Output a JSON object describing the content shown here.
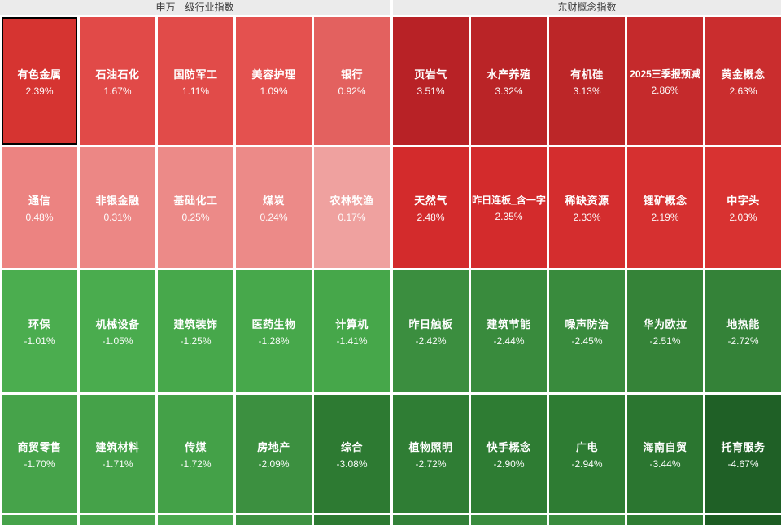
{
  "header": {
    "bar_color": "#ebebeb",
    "text_color": "#3c3c3c"
  },
  "selection": {
    "selected_tile": "有色金属",
    "selected_border_color": "#000000"
  },
  "chart_data": {
    "type": "heatmap",
    "value_unit": "%",
    "color_scale": "red = gain, green = loss; deeper shade = larger magnitude",
    "groups": [
      {
        "title": "申万一级行业指数",
        "rows": [
          [
            {
              "label": "有色金属",
              "value": 2.39,
              "display": "2.39%",
              "color": "#d63431",
              "selected": true
            },
            {
              "label": "石油石化",
              "value": 1.67,
              "display": "1.67%",
              "color": "#e14a48"
            },
            {
              "label": "国防军工",
              "value": 1.11,
              "display": "1.11%",
              "color": "#e14b49"
            },
            {
              "label": "美容护理",
              "value": 1.09,
              "display": "1.09%",
              "color": "#e4514f"
            },
            {
              "label": "银行",
              "value": 0.92,
              "display": "0.92%",
              "color": "#e3615f"
            }
          ],
          [
            {
              "label": "通信",
              "value": 0.48,
              "display": "0.48%",
              "color": "#ec8381"
            },
            {
              "label": "非银金融",
              "value": 0.31,
              "display": "0.31%",
              "color": "#ec8785"
            },
            {
              "label": "基础化工",
              "value": 0.25,
              "display": "0.25%",
              "color": "#ec8a88"
            },
            {
              "label": "煤炭",
              "value": 0.24,
              "display": "0.24%",
              "color": "#ec8a88"
            },
            {
              "label": "农林牧渔",
              "value": 0.17,
              "display": "0.17%",
              "color": "#efa19f"
            }
          ],
          [
            {
              "label": "环保",
              "value": -1.01,
              "display": "-1.01%",
              "color": "#4bad4f"
            },
            {
              "label": "机械设备",
              "value": -1.05,
              "display": "-1.05%",
              "color": "#4aac4e"
            },
            {
              "label": "建筑装饰",
              "value": -1.25,
              "display": "-1.25%",
              "color": "#47a84b"
            },
            {
              "label": "医药生物",
              "value": -1.28,
              "display": "-1.28%",
              "color": "#47a84b"
            },
            {
              "label": "计算机",
              "value": -1.41,
              "display": "-1.41%",
              "color": "#46a74a"
            }
          ],
          [
            {
              "label": "商贸零售",
              "value": -1.7,
              "display": "-1.70%",
              "color": "#46a34a"
            },
            {
              "label": "建筑材料",
              "value": -1.71,
              "display": "-1.71%",
              "color": "#45a249"
            },
            {
              "label": "传媒",
              "value": -1.72,
              "display": "-1.72%",
              "color": "#44a148"
            },
            {
              "label": "房地产",
              "value": -2.09,
              "display": "-2.09%",
              "color": "#3c9040"
            },
            {
              "label": "综合",
              "value": -3.08,
              "display": "-3.08%",
              "color": "#2d7a32"
            }
          ]
        ],
        "partial_colors": [
          "#46a34a",
          "#48a54c",
          "#4ba94f",
          "#3e9242",
          "#2d7a32"
        ]
      },
      {
        "title": "东财概念指数",
        "rows": [
          [
            {
              "label": "页岩气",
              "value": 3.51,
              "display": "3.51%",
              "color": "#b82226"
            },
            {
              "label": "水产养殖",
              "value": 3.32,
              "display": "3.32%",
              "color": "#ba2427"
            },
            {
              "label": "有机硅",
              "value": 3.13,
              "display": "3.13%",
              "color": "#bc2628"
            },
            {
              "label": "2025三季报预减",
              "value": 2.86,
              "display": "2.86%",
              "color": "#c52a2c"
            },
            {
              "label": "黄金概念",
              "value": 2.63,
              "display": "2.63%",
              "color": "#ca2d2e"
            }
          ],
          [
            {
              "label": "天然气",
              "value": 2.48,
              "display": "2.48%",
              "color": "#d32b2c"
            },
            {
              "label": "昨日连板_含一字",
              "value": 2.35,
              "display": "2.35%",
              "color": "#d32b2c"
            },
            {
              "label": "稀缺资源",
              "value": 2.33,
              "display": "2.33%",
              "color": "#d42d2e"
            },
            {
              "label": "锂矿概念",
              "value": 2.19,
              "display": "2.19%",
              "color": "#d63030"
            },
            {
              "label": "中字头",
              "value": 2.03,
              "display": "2.03%",
              "color": "#d83231"
            }
          ],
          [
            {
              "label": "昨日触板",
              "value": -2.42,
              "display": "-2.42%",
              "color": "#3b8e3f"
            },
            {
              "label": "建筑节能",
              "value": -2.44,
              "display": "-2.44%",
              "color": "#398b3d"
            },
            {
              "label": "噪声防治",
              "value": -2.45,
              "display": "-2.45%",
              "color": "#398b3d"
            },
            {
              "label": "华为欧拉",
              "value": -2.51,
              "display": "-2.51%",
              "color": "#358338"
            },
            {
              "label": "地热能",
              "value": -2.72,
              "display": "-2.72%",
              "color": "#348238"
            }
          ],
          [
            {
              "label": "植物照明",
              "value": -2.72,
              "display": "-2.72%",
              "color": "#2f7d34"
            },
            {
              "label": "快手概念",
              "value": -2.9,
              "display": "-2.90%",
              "color": "#2e7c33"
            },
            {
              "label": "广电",
              "value": -2.94,
              "display": "-2.94%",
              "color": "#2e7c33"
            },
            {
              "label": "海南自贸",
              "value": -3.44,
              "display": "-3.44%",
              "color": "#2b7630"
            },
            {
              "label": "托育服务",
              "value": -4.67,
              "display": "-4.67%",
              "color": "#1f6026"
            }
          ]
        ],
        "partial_colors": [
          "#338139",
          "#3a8c3e",
          "#3a8c3e",
          "#2f7d34",
          "#1d5c23"
        ]
      }
    ]
  }
}
